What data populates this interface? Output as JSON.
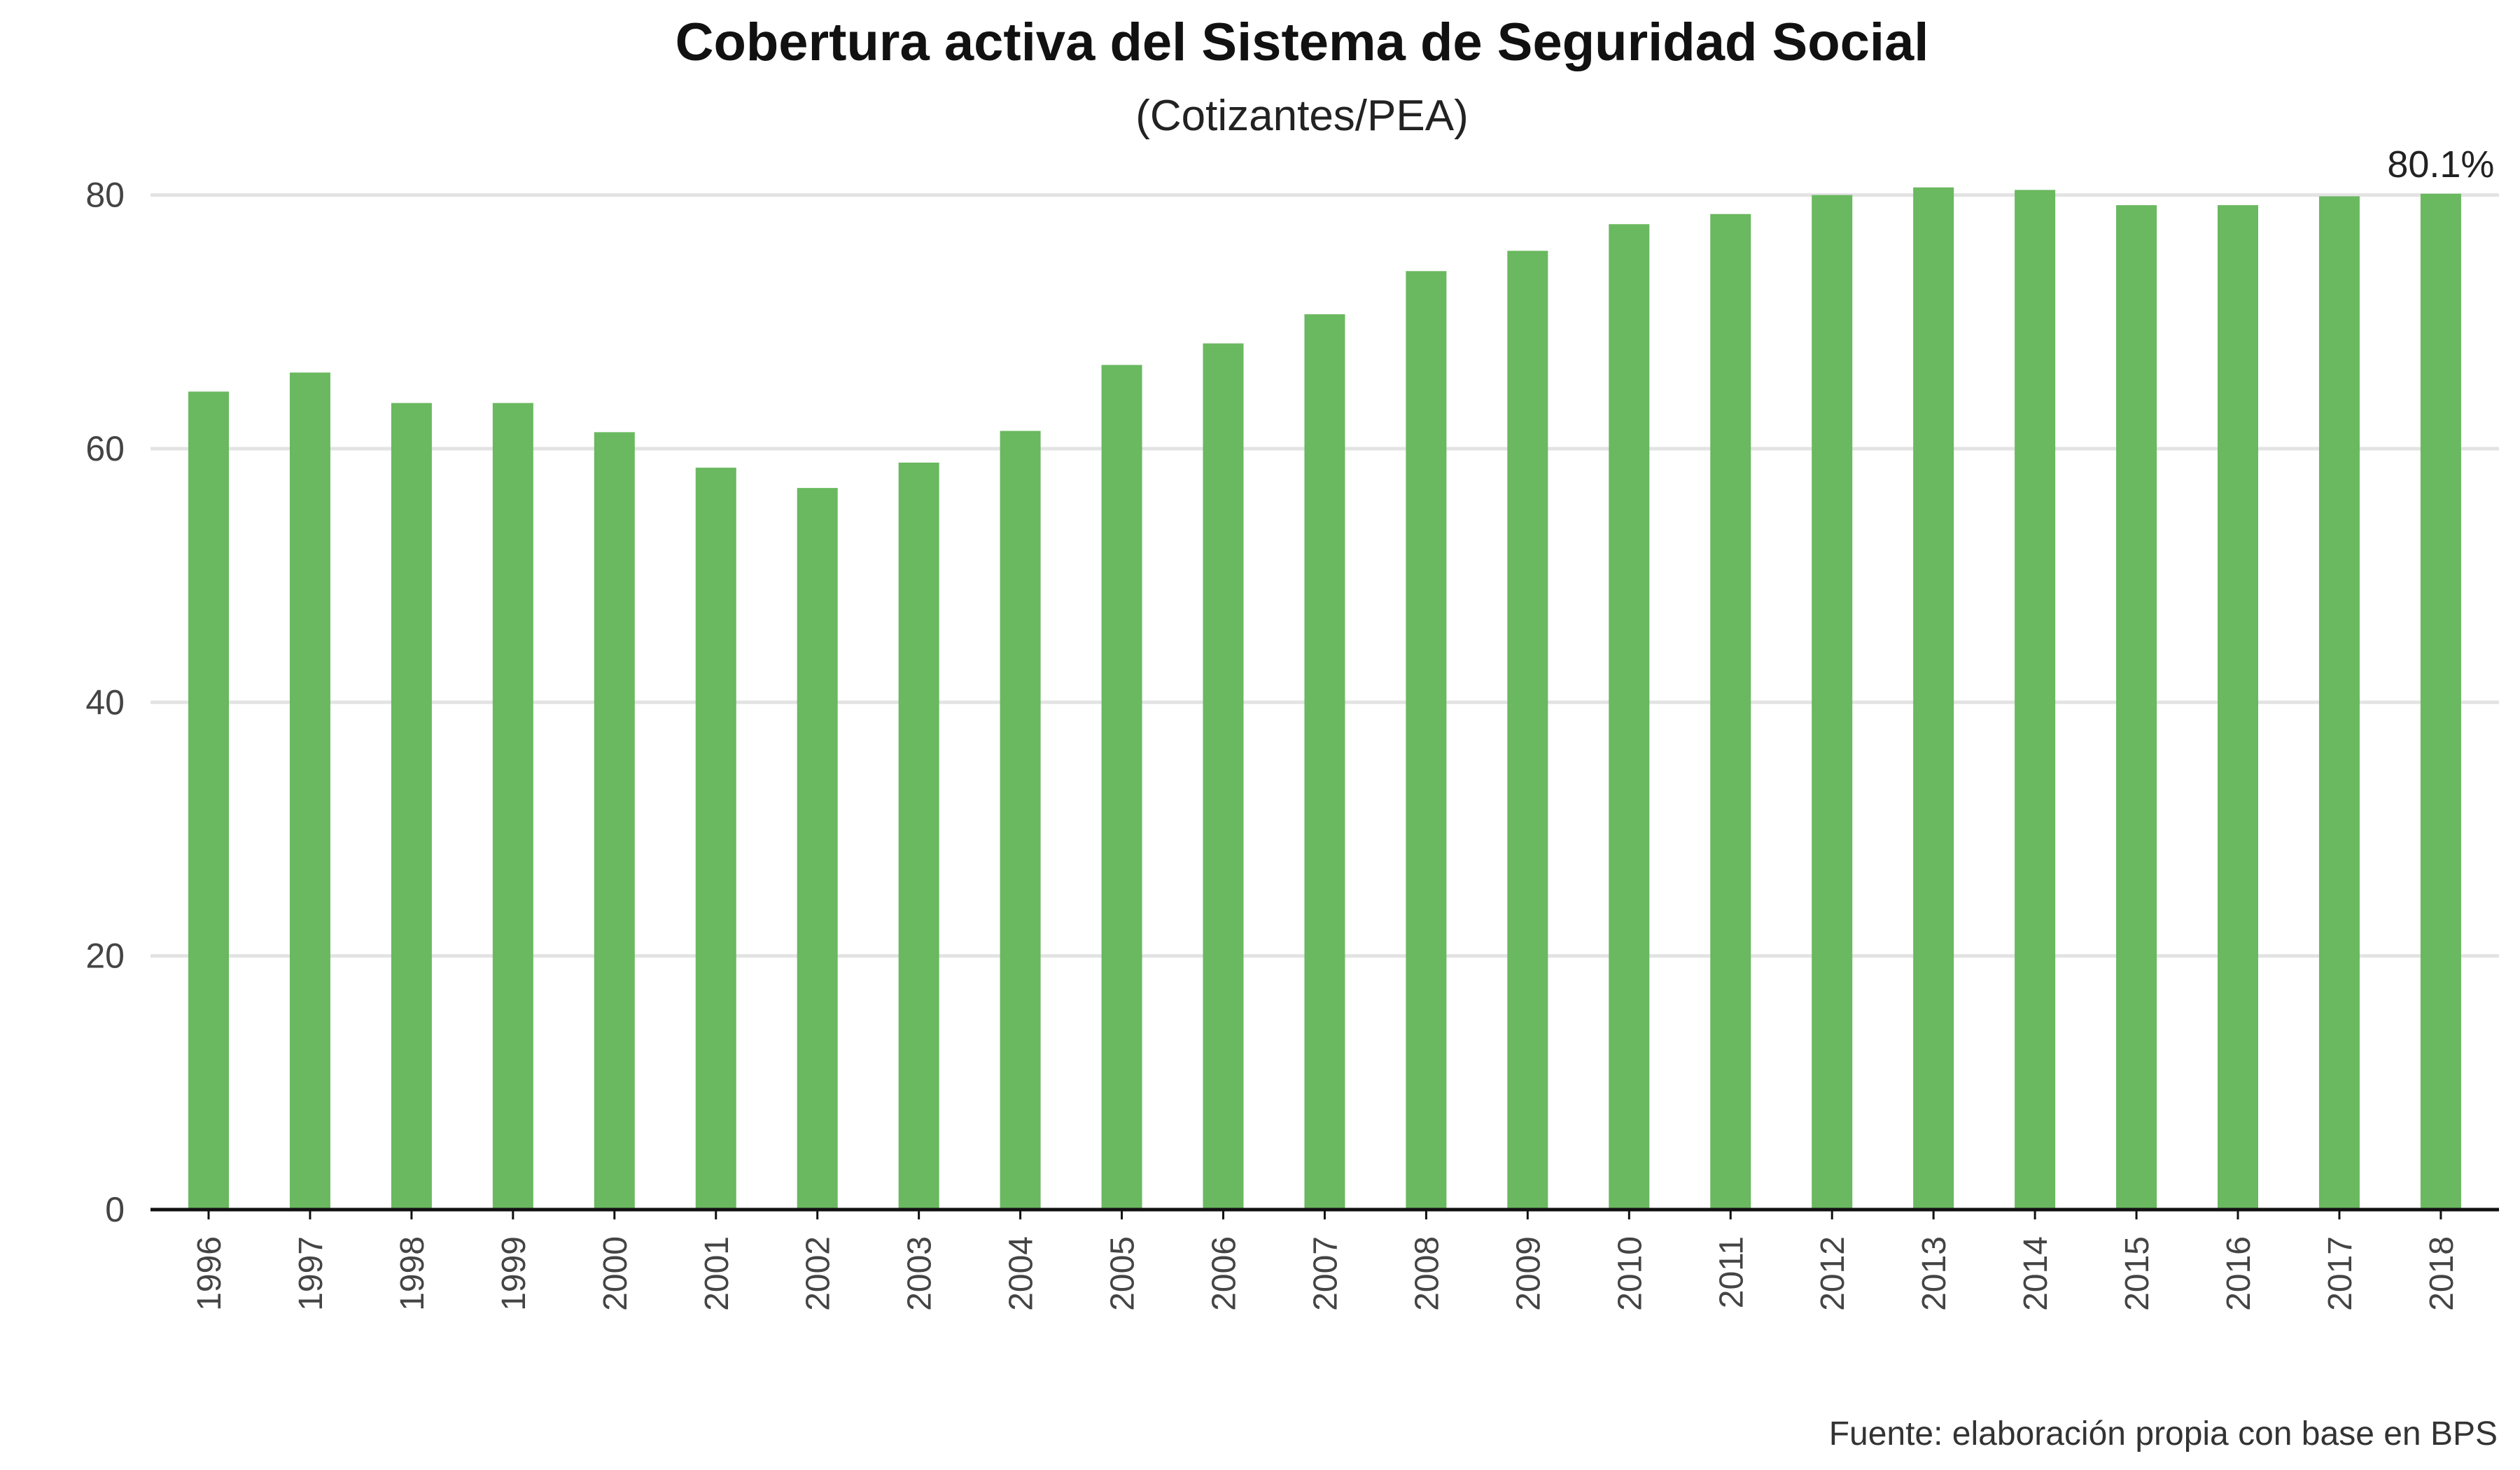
{
  "chart_data": {
    "type": "bar",
    "title": "Cobertura activa del Sistema de Seguridad Social",
    "subtitle": "(Cotizantes/PEA)",
    "source": "Fuente: elaboración propia con base en BPS",
    "categories": [
      "1996",
      "1997",
      "1998",
      "1999",
      "2000",
      "2001",
      "2002",
      "2003",
      "2004",
      "2005",
      "2006",
      "2007",
      "2008",
      "2009",
      "2010",
      "2011",
      "2012",
      "2013",
      "2014",
      "2015",
      "2016",
      "2017",
      "2018"
    ],
    "values": [
      64.5,
      66.0,
      63.6,
      63.6,
      61.3,
      58.5,
      56.9,
      58.9,
      61.4,
      66.6,
      68.3,
      70.6,
      74.0,
      75.6,
      77.7,
      78.5,
      80.0,
      80.6,
      80.4,
      79.2,
      79.2,
      79.9,
      80.1
    ],
    "ylim": [
      0,
      85
    ],
    "yticks": [
      0,
      20,
      40,
      60,
      80
    ],
    "grid": true,
    "annotation": {
      "category": "2018",
      "text": "80.1%"
    },
    "bar_color": "#6ab85f"
  }
}
